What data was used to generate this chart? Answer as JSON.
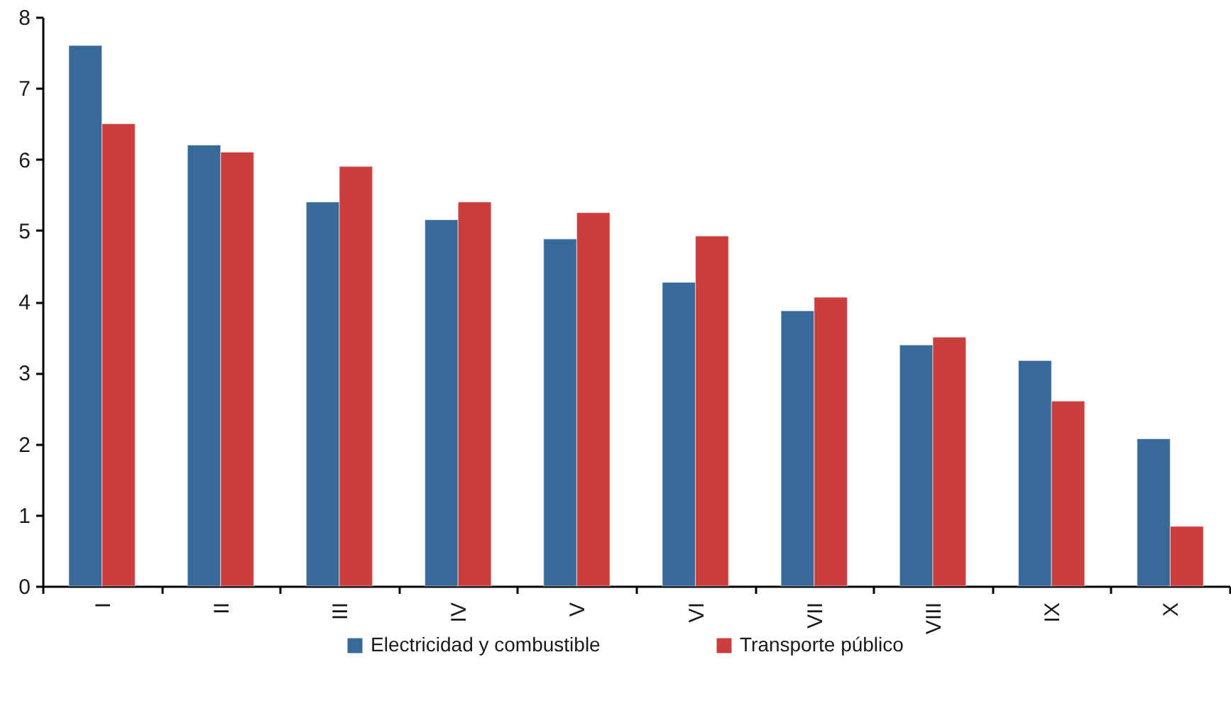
{
  "chart_data": {
    "type": "bar",
    "categories": [
      "I",
      "II",
      "III",
      "IV",
      "V",
      "VI",
      "VII",
      "VIII",
      "IX",
      "X"
    ],
    "series": [
      {
        "name": "Electricidad y combustible",
        "color": "#376a99",
        "values": [
          7.6,
          6.2,
          5.4,
          5.15,
          4.88,
          4.27,
          3.87,
          3.39,
          3.17,
          2.07
        ]
      },
      {
        "name": "Transporte público",
        "color": "#cc3d3e",
        "values": [
          6.5,
          6.1,
          5.9,
          5.4,
          5.25,
          4.92,
          4.06,
          3.5,
          2.6,
          0.84
        ]
      }
    ],
    "ylim": [
      0,
      8
    ],
    "yticks": [
      0,
      1,
      2,
      3,
      4,
      5,
      6,
      7,
      8
    ],
    "grid": false,
    "legend": "bottom"
  }
}
